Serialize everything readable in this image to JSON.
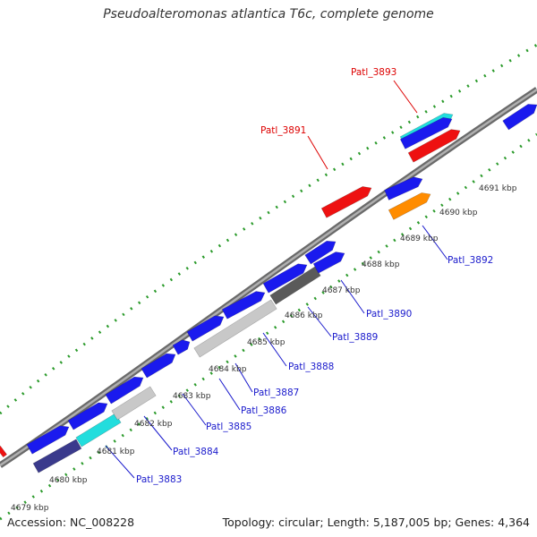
{
  "title": "Pseudoalteromonas atlantica T6c, complete genome",
  "footer": {
    "accession": "Accession: NC_008228",
    "stats": "Topology: circular; Length: 5,187,005 bp; Genes: 4,364"
  },
  "scale_ticks": [
    "4679 kbp",
    "4680 kbp",
    "4681 kbp",
    "4682 kbp",
    "4683 kbp",
    "4684 kbp",
    "4685 kbp",
    "4686 kbp",
    "4687 kbp",
    "4688 kbp",
    "4689 kbp",
    "4690 kbp",
    "4691 kbp"
  ],
  "gene_labels": {
    "top": [
      "Patl_3891",
      "Patl_3893"
    ],
    "bottom": [
      "Patl_3883",
      "Patl_3884",
      "Patl_3885",
      "Patl_3886",
      "Patl_3887",
      "Patl_3888",
      "Patl_3889",
      "Patl_3890",
      "Patl_3892"
    ]
  },
  "colors": {
    "background": "#ffffff",
    "backbone": "#808080",
    "gene_blue": "#1a1aee",
    "gene_red": "#ee1111",
    "gene_cyan": "#22dddd",
    "gene_orange": "#ff8c00",
    "gene_light_gray": "#c8c8c8",
    "gene_dark_gray": "#5a5a5a",
    "gene_navy": "#3a3a8c",
    "dots": "#2a9a2a",
    "label_red": "#dd0000",
    "label_blue": "#1a1acc"
  }
}
